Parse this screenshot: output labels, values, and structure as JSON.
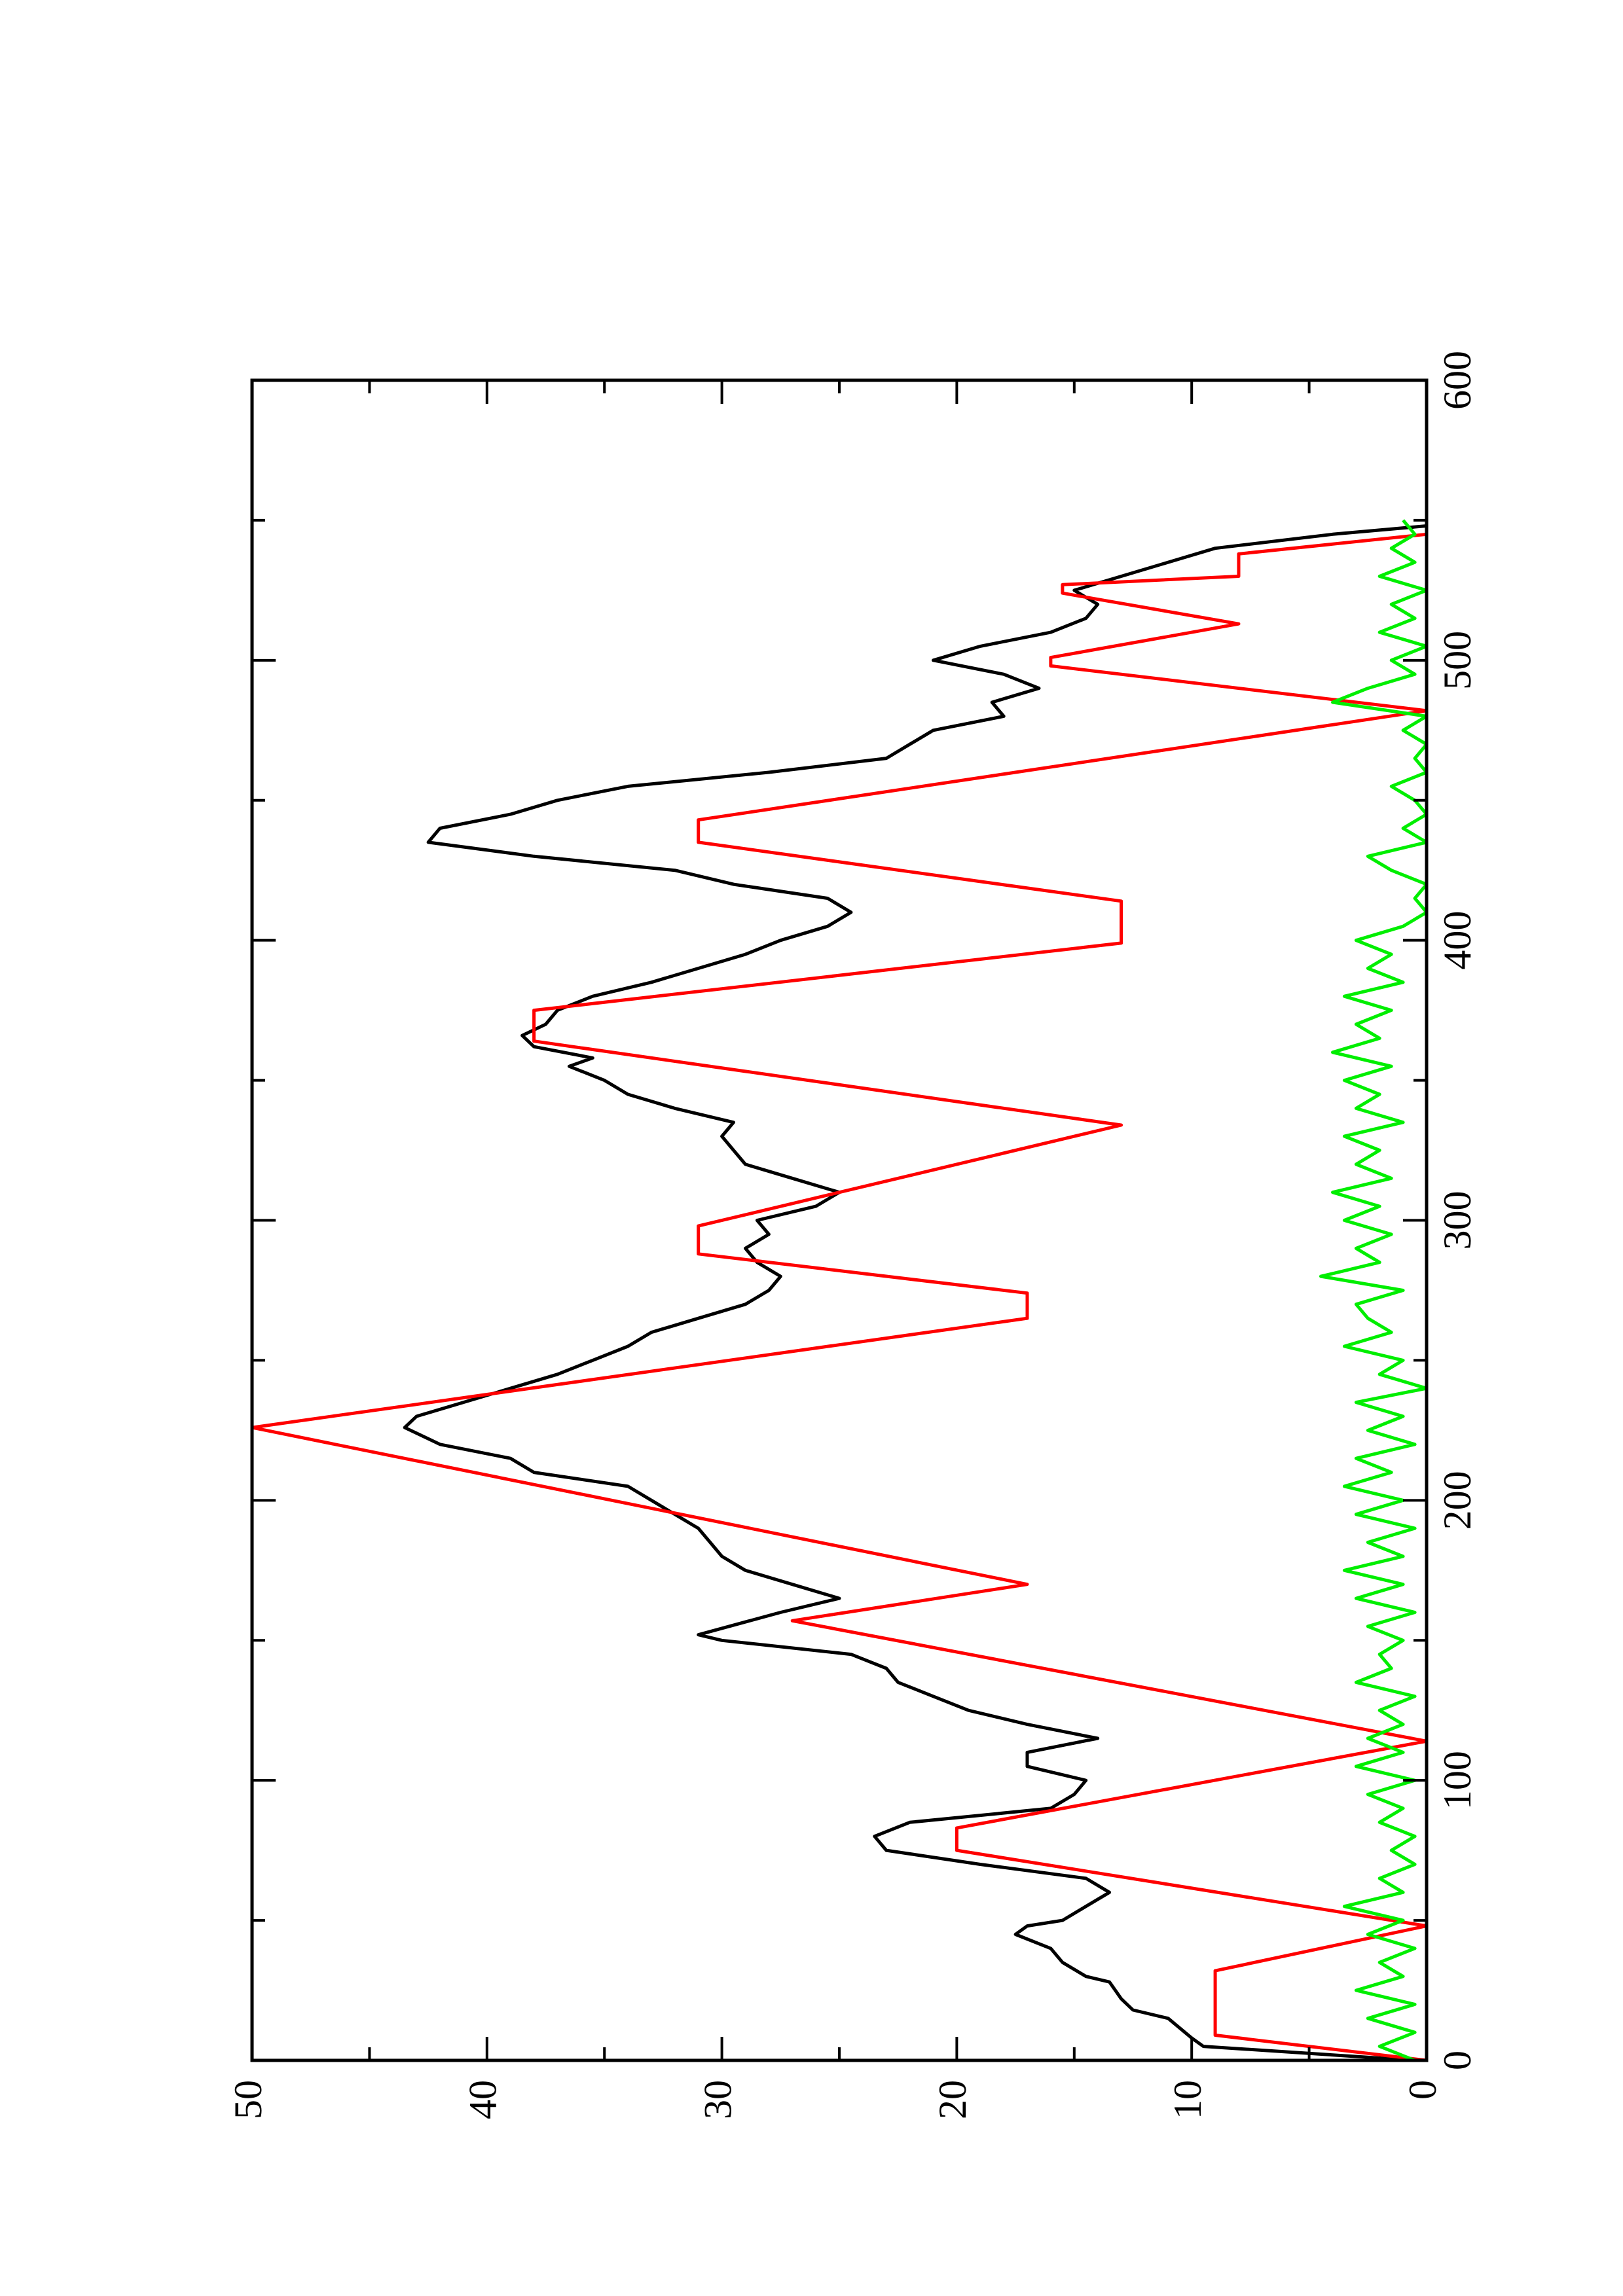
{
  "chart_data": {
    "type": "line",
    "xlim": [
      0,
      600
    ],
    "ylim": [
      0,
      50
    ],
    "xticks": [
      0,
      100,
      200,
      300,
      400,
      500,
      600
    ],
    "yticks": [
      0,
      10,
      20,
      30,
      40,
      50
    ],
    "xminorticks": [
      50,
      150,
      250,
      350,
      450,
      550
    ],
    "yminorticks": [
      5,
      15,
      25,
      35,
      45
    ],
    "rotated": true,
    "series": [
      {
        "color": "#000000",
        "x": [
          0,
          5,
          8,
          15,
          18,
          22,
          28,
          30,
          35,
          40,
          45,
          48,
          50,
          55,
          60,
          65,
          70,
          75,
          80,
          85,
          90,
          95,
          100,
          105,
          110,
          115,
          120,
          125,
          130,
          135,
          140,
          145,
          150,
          152,
          160,
          165,
          170,
          175,
          180,
          185,
          190,
          195,
          200,
          205,
          210,
          215,
          220,
          226,
          230,
          235,
          240,
          245,
          250,
          255,
          260,
          265,
          270,
          275,
          280,
          285,
          290,
          295,
          300,
          305,
          310,
          315,
          320,
          325,
          330,
          335,
          340,
          345,
          350,
          355,
          358,
          362,
          366,
          370,
          375,
          380,
          385,
          390,
          395,
          400,
          405,
          410,
          415,
          420,
          425,
          430,
          435,
          440,
          445,
          450,
          455,
          460,
          465,
          470,
          475,
          480,
          485,
          490,
          495,
          500,
          505,
          510,
          515,
          520,
          525,
          530,
          535,
          540,
          545,
          548
        ],
        "values": [
          0.5,
          9.5,
          10,
          11,
          12.5,
          13,
          13.5,
          14.5,
          15.5,
          16,
          17.5,
          17,
          15.5,
          14.5,
          13.5,
          14.5,
          19,
          23,
          23.5,
          22,
          16,
          15,
          14.5,
          17,
          17,
          14,
          17,
          19.5,
          21,
          22.5,
          23,
          24.5,
          30,
          31,
          27.5,
          25,
          27,
          29,
          30,
          30.5,
          31,
          32,
          33,
          34,
          38,
          39,
          42,
          43.5,
          43,
          41,
          39,
          37,
          35.5,
          34,
          33,
          31,
          29,
          28,
          27.5,
          28.5,
          29,
          28,
          28.5,
          26,
          25,
          27,
          29,
          29.5,
          30,
          29.5,
          32,
          34,
          35,
          36.5,
          35.5,
          38,
          38.5,
          37.5,
          37,
          35.5,
          33,
          31,
          29,
          27.5,
          25.5,
          24.5,
          25.5,
          29.5,
          32,
          38,
          42.5,
          42,
          39,
          37,
          34,
          28,
          23,
          22,
          21,
          18,
          18.5,
          16.5,
          18,
          21,
          19,
          16,
          14.5,
          14,
          15,
          13,
          11,
          9,
          4,
          0
        ]
      },
      {
        "color": "#ff0000",
        "x": [
          0,
          9,
          32,
          48,
          75,
          83,
          114,
          157,
          170,
          226,
          265,
          274,
          288,
          298,
          334,
          364,
          375,
          399,
          414,
          435,
          443,
          482,
          498,
          501,
          513,
          524,
          527,
          530,
          538,
          545
        ],
        "values": [
          0,
          9,
          9,
          0,
          20,
          20,
          0,
          27,
          17,
          50,
          17,
          17,
          31,
          31,
          13,
          38,
          38,
          13,
          13,
          31,
          31,
          0,
          16,
          16,
          8,
          15.5,
          15.5,
          8,
          8,
          0
        ]
      },
      {
        "color": "#00ee00",
        "x": [
          0,
          5,
          10,
          15,
          20,
          25,
          30,
          35,
          40,
          45,
          50,
          55,
          60,
          65,
          70,
          75,
          80,
          85,
          90,
          95,
          100,
          105,
          110,
          115,
          120,
          125,
          130,
          135,
          140,
          145,
          150,
          155,
          160,
          165,
          170,
          175,
          180,
          185,
          190,
          195,
          200,
          205,
          210,
          215,
          220,
          225,
          230,
          235,
          240,
          245,
          250,
          255,
          260,
          265,
          270,
          275,
          280,
          285,
          290,
          295,
          300,
          305,
          310,
          315,
          320,
          325,
          330,
          335,
          340,
          345,
          350,
          355,
          360,
          365,
          370,
          375,
          380,
          385,
          390,
          395,
          400,
          405,
          410,
          415,
          420,
          425,
          430,
          435,
          440,
          445,
          450,
          455,
          460,
          465,
          470,
          475,
          480,
          485,
          490,
          495,
          500,
          505,
          510,
          515,
          520,
          525,
          530,
          535,
          540,
          545,
          550
        ],
        "values": [
          0.5,
          2,
          0.5,
          2.5,
          0.5,
          3,
          1,
          2,
          0.5,
          2.5,
          1,
          3.5,
          1,
          2,
          0.5,
          1.5,
          0.5,
          2,
          1,
          2.5,
          0.5,
          3,
          1,
          2.5,
          1,
          2,
          0.5,
          3,
          1.5,
          2,
          1,
          2.5,
          0.5,
          3,
          1,
          3.5,
          1,
          2.5,
          0.5,
          3,
          1,
          3.5,
          1.5,
          3,
          0.5,
          2.5,
          1,
          3,
          0,
          2,
          1,
          3.5,
          1.5,
          2.5,
          3,
          1,
          4.5,
          2,
          3,
          1.5,
          3.5,
          2,
          4,
          1.5,
          3,
          2,
          3.5,
          1,
          3,
          2,
          3.5,
          1.5,
          4,
          2,
          3,
          1.5,
          3.5,
          1,
          2.5,
          1.5,
          3,
          1,
          0,
          0.5,
          0,
          1.5,
          2.5,
          0,
          1,
          0,
          0.5,
          1.5,
          0,
          0.5,
          0,
          1,
          0,
          4,
          2.5,
          0.5,
          1.5,
          0,
          2,
          0.5,
          1.5,
          0,
          2,
          0.5,
          1.5,
          0.5,
          1
        ]
      }
    ]
  }
}
